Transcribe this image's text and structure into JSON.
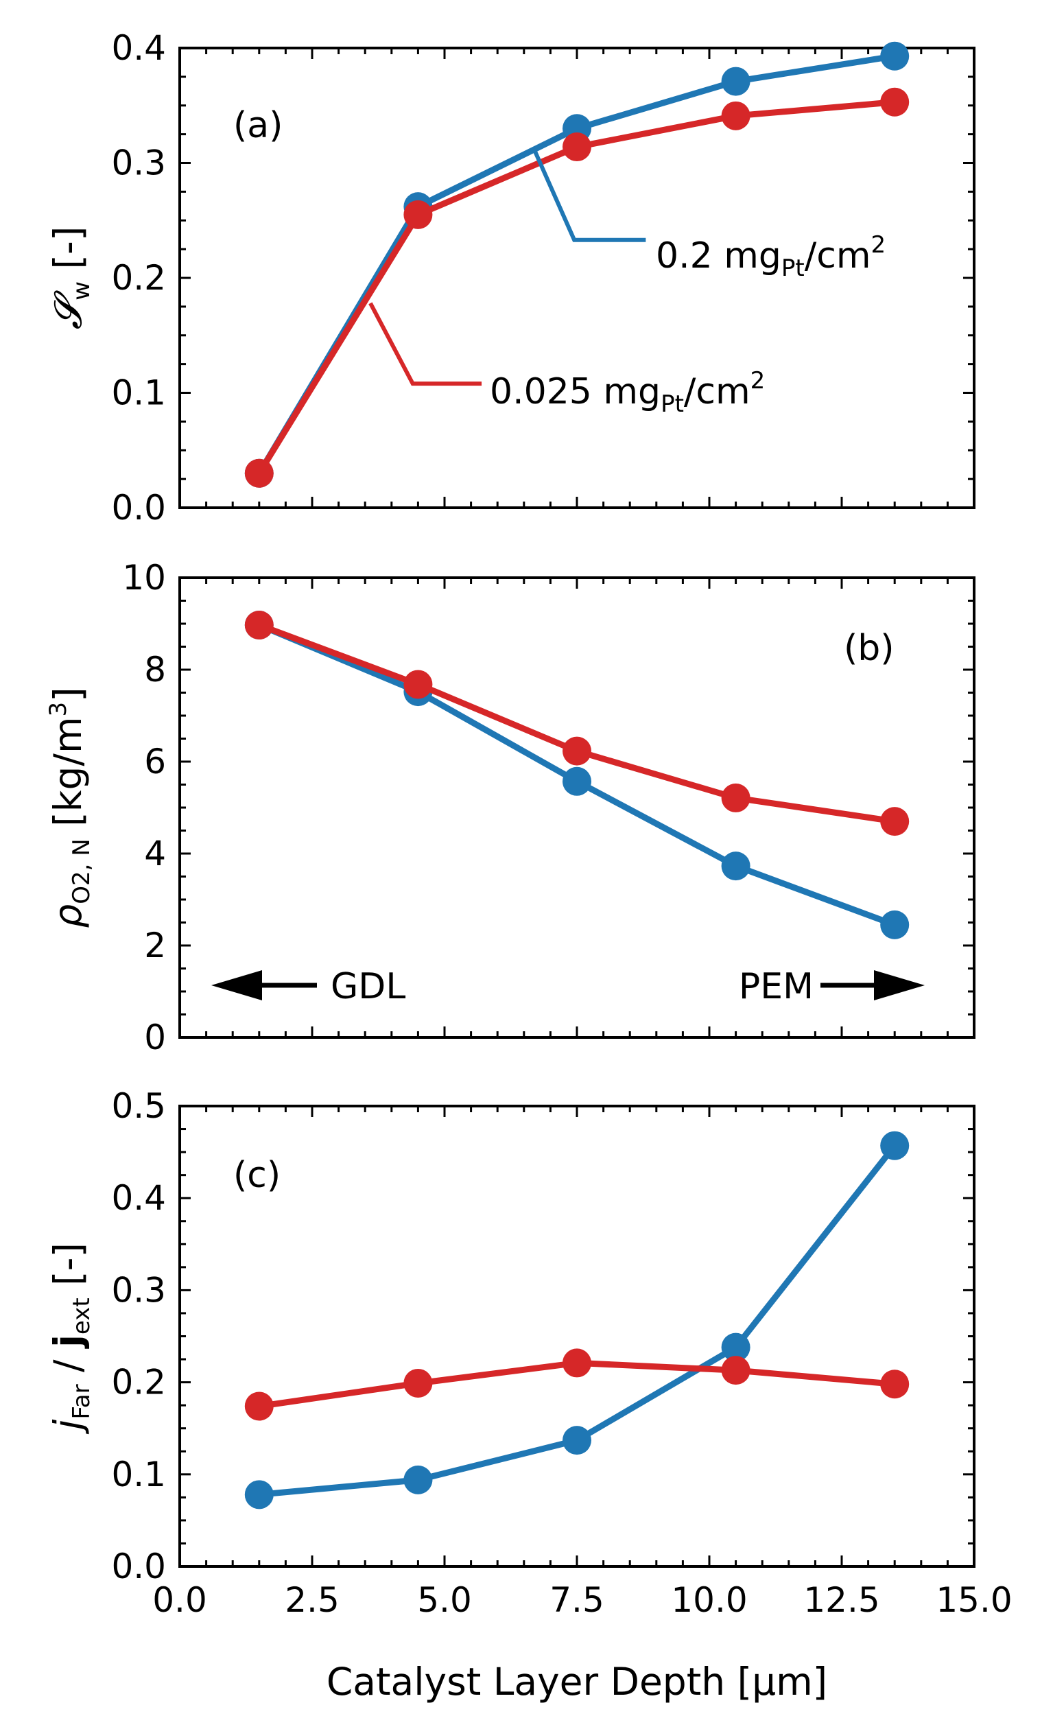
{
  "chart_data": [
    {
      "type": "line",
      "panel_label": "(a)",
      "ylabel": "𝓢w [-]",
      "ylabel_main": "𝓢",
      "ylabel_sub": "w",
      "ylabel_unit": "[-]",
      "ylim": [
        0.0,
        0.4
      ],
      "yticks": [
        "0.0",
        "0.1",
        "0.2",
        "0.3",
        "0.4"
      ],
      "ytick_values": [
        0.0,
        0.1,
        0.2,
        0.3,
        0.4
      ],
      "x": [
        1.5,
        4.5,
        7.5,
        10.5,
        13.5
      ],
      "series": [
        {
          "name": "0.2 mgPt/cm2",
          "color": "#1f77b4",
          "values": [
            0.03,
            0.262,
            0.33,
            0.371,
            0.393
          ]
        },
        {
          "name": "0.025 mgPt/cm2",
          "color": "#d62728",
          "values": [
            0.03,
            0.255,
            0.314,
            0.341,
            0.353
          ]
        }
      ],
      "annotations": [
        {
          "label_main": "0.2 mg",
          "label_sub": "Pt",
          "label_rest": "/cm",
          "label_sup": "2",
          "color": "#1f77b4"
        },
        {
          "label_main": "0.025 mg",
          "label_sub": "Pt",
          "label_rest": "/cm",
          "label_sup": "2",
          "color": "#d62728"
        }
      ]
    },
    {
      "type": "line",
      "panel_label": "(b)",
      "ylabel_main": "ρ",
      "ylabel_sub": "O2, N",
      "ylabel_unit": "[kg/m",
      "ylabel_sup": "3",
      "ylabel_close": "]",
      "ylim": [
        0,
        10
      ],
      "yticks": [
        "0",
        "2",
        "4",
        "6",
        "8",
        "10"
      ],
      "ytick_values": [
        0,
        2,
        4,
        6,
        8,
        10
      ],
      "x": [
        1.5,
        4.5,
        7.5,
        10.5,
        13.5
      ],
      "series": [
        {
          "name": "0.2 mgPt/cm2",
          "color": "#1f77b4",
          "values": [
            8.97,
            7.52,
            5.57,
            3.73,
            2.45
          ]
        },
        {
          "name": "0.025 mgPt/cm2",
          "color": "#d62728",
          "values": [
            8.97,
            7.68,
            6.23,
            5.21,
            4.7
          ]
        }
      ],
      "arrows": {
        "left": "GDL",
        "right": "PEM"
      }
    },
    {
      "type": "line",
      "panel_label": "(c)",
      "ylabel_j": "j",
      "ylabel_jsub": "Far",
      "ylabel_slash": " / ",
      "ylabel_J": "j",
      "ylabel_Jsub": "ext",
      "ylabel_unit": "[-]",
      "ylim": [
        0.0,
        0.5
      ],
      "yticks": [
        "0.0",
        "0.1",
        "0.2",
        "0.3",
        "0.4",
        "0.5"
      ],
      "ytick_values": [
        0.0,
        0.1,
        0.2,
        0.3,
        0.4,
        0.5
      ],
      "x": [
        1.5,
        4.5,
        7.5,
        10.5,
        13.5
      ],
      "xlabel": "Catalyst Layer Depth [μm]",
      "xlim": [
        0.0,
        15.0
      ],
      "xticks": [
        "0.0",
        "2.5",
        "5.0",
        "7.5",
        "10.0",
        "12.5",
        "15.0"
      ],
      "xtick_values": [
        0.0,
        2.5,
        5.0,
        7.5,
        10.0,
        12.5,
        15.0
      ],
      "series": [
        {
          "name": "0.2 mgPt/cm2",
          "color": "#1f77b4",
          "values": [
            0.078,
            0.094,
            0.137,
            0.238,
            0.457
          ]
        },
        {
          "name": "0.025 mgPt/cm2",
          "color": "#d62728",
          "values": [
            0.174,
            0.199,
            0.221,
            0.213,
            0.198
          ]
        }
      ]
    }
  ]
}
